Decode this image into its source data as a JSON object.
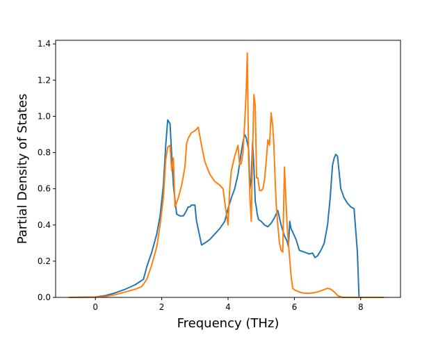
{
  "chart_data": {
    "type": "line",
    "xlabel": "Frequency (THz)",
    "ylabel": "Partial Density of States",
    "xlim": [
      -1.2,
      9.2
    ],
    "ylim": [
      0.0,
      1.42
    ],
    "xticks": [
      0,
      2,
      4,
      6,
      8
    ],
    "yticks": [
      0.0,
      0.2,
      0.4,
      0.6,
      0.8,
      1.0,
      1.2,
      1.4
    ],
    "xtick_labels": [
      "0",
      "2",
      "4",
      "6",
      "8"
    ],
    "ytick_labels": [
      "0.0",
      "0.2",
      "0.4",
      "0.6",
      "0.8",
      "1.0",
      "1.2",
      "1.4"
    ],
    "grid": false,
    "legend": "none",
    "series": [
      {
        "color": "#1f77b4",
        "x": [
          -0.8,
          0.0,
          0.3,
          0.6,
          0.9,
          1.2,
          1.45,
          1.55,
          1.7,
          1.85,
          1.95,
          2.05,
          2.12,
          2.18,
          2.25,
          2.35,
          2.45,
          2.55,
          2.65,
          2.72,
          2.8,
          2.85,
          2.9,
          2.95,
          3.0,
          3.05,
          3.12,
          3.2,
          3.3,
          3.45,
          3.6,
          3.75,
          3.9,
          4.0,
          4.1,
          4.2,
          4.3,
          4.38,
          4.45,
          4.5,
          4.55,
          4.62,
          4.66,
          4.7,
          4.74,
          4.78,
          4.82,
          4.85,
          4.88,
          4.92,
          5.0,
          5.1,
          5.2,
          5.3,
          5.4,
          5.5,
          5.6,
          5.7,
          5.78,
          5.82,
          5.86,
          5.9,
          5.95,
          6.05,
          6.15,
          6.3,
          6.45,
          6.55,
          6.62,
          6.7,
          6.8,
          6.9,
          7.0,
          7.08,
          7.15,
          7.2,
          7.25,
          7.3,
          7.4,
          7.5,
          7.6,
          7.7,
          7.8,
          7.9,
          7.95,
          8.7
        ],
        "y": [
          0.0,
          0.002,
          0.01,
          0.025,
          0.045,
          0.07,
          0.1,
          0.17,
          0.25,
          0.35,
          0.45,
          0.62,
          0.84,
          0.98,
          0.96,
          0.62,
          0.46,
          0.45,
          0.45,
          0.47,
          0.5,
          0.5,
          0.51,
          0.51,
          0.51,
          0.42,
          0.36,
          0.29,
          0.3,
          0.32,
          0.35,
          0.38,
          0.42,
          0.49,
          0.55,
          0.6,
          0.68,
          0.78,
          0.86,
          0.9,
          0.88,
          0.82,
          0.6,
          0.66,
          0.86,
          0.72,
          0.53,
          0.5,
          0.46,
          0.43,
          0.42,
          0.4,
          0.39,
          0.41,
          0.44,
          0.48,
          0.4,
          0.34,
          0.31,
          0.28,
          0.42,
          0.38,
          0.36,
          0.32,
          0.26,
          0.25,
          0.24,
          0.245,
          0.22,
          0.23,
          0.26,
          0.3,
          0.4,
          0.55,
          0.73,
          0.77,
          0.79,
          0.78,
          0.6,
          0.55,
          0.52,
          0.5,
          0.49,
          0.25,
          0.0,
          0.0
        ]
      },
      {
        "color": "#ff7f0e",
        "x": [
          -0.8,
          0.0,
          0.3,
          0.6,
          0.9,
          1.2,
          1.4,
          1.55,
          1.7,
          1.85,
          1.95,
          2.05,
          2.12,
          2.18,
          2.25,
          2.3,
          2.35,
          2.4,
          2.5,
          2.6,
          2.7,
          2.75,
          2.8,
          2.9,
          3.0,
          3.05,
          3.1,
          3.2,
          3.3,
          3.45,
          3.6,
          3.75,
          3.85,
          3.92,
          4.0,
          4.05,
          4.1,
          4.2,
          4.3,
          4.35,
          4.4,
          4.45,
          4.5,
          4.55,
          4.58,
          4.62,
          4.66,
          4.7,
          4.74,
          4.78,
          4.82,
          4.86,
          4.9,
          4.95,
          5.0,
          5.05,
          5.1,
          5.15,
          5.2,
          5.25,
          5.3,
          5.35,
          5.38,
          5.42,
          5.45,
          5.5,
          5.55,
          5.6,
          5.65,
          5.7,
          5.78,
          5.82,
          5.86,
          5.9,
          5.95,
          6.02,
          6.08,
          6.15,
          6.25,
          6.4,
          6.55,
          6.7,
          6.85,
          7.0,
          7.1,
          7.2,
          7.25,
          7.3,
          7.45,
          7.6,
          7.75,
          7.85,
          7.95,
          8.7
        ],
        "y": [
          0.0,
          0.001,
          0.005,
          0.015,
          0.03,
          0.045,
          0.06,
          0.1,
          0.18,
          0.28,
          0.4,
          0.55,
          0.76,
          0.83,
          0.84,
          0.7,
          0.77,
          0.5,
          0.55,
          0.62,
          0.72,
          0.85,
          0.88,
          0.91,
          0.92,
          0.93,
          0.94,
          0.84,
          0.75,
          0.68,
          0.64,
          0.62,
          0.6,
          0.5,
          0.4,
          0.6,
          0.7,
          0.78,
          0.84,
          0.73,
          0.74,
          0.8,
          0.96,
          1.15,
          1.35,
          0.76,
          0.55,
          0.42,
          0.8,
          1.12,
          1.06,
          0.66,
          0.66,
          0.59,
          0.59,
          0.6,
          0.65,
          0.75,
          0.87,
          0.84,
          1.02,
          0.94,
          0.85,
          0.65,
          0.52,
          0.4,
          0.3,
          0.26,
          0.25,
          0.72,
          0.4,
          0.3,
          0.21,
          0.12,
          0.05,
          0.04,
          0.035,
          0.03,
          0.025,
          0.022,
          0.025,
          0.03,
          0.04,
          0.05,
          0.045,
          0.03,
          0.022,
          0.01,
          0.0,
          0.0,
          0.0,
          0.0,
          0.0,
          0.0
        ]
      }
    ]
  }
}
